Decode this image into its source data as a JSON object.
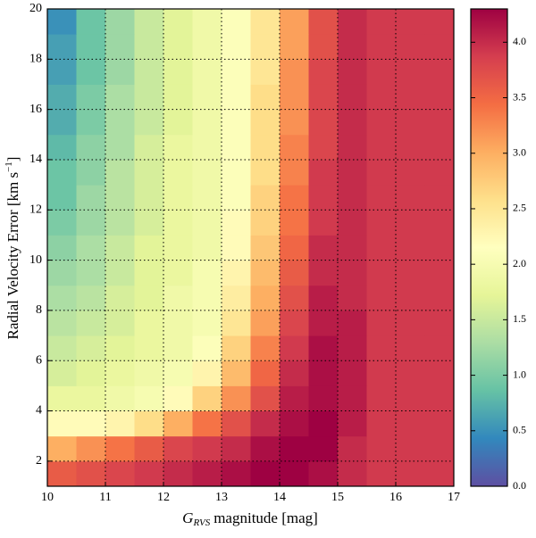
{
  "chart_data": {
    "type": "heatmap",
    "xlabel": "G",
    "xlabel_sub": "RVS",
    "xlabel_rest": "magnitude [mag]",
    "ylabel": "Radial Velocity Error [km s",
    "ylabel_sup": "−1",
    "ylabel_end": "]",
    "xlim": [
      10,
      17
    ],
    "xticks": [
      10,
      11,
      12,
      13,
      14,
      15,
      16,
      17
    ],
    "ylim": [
      1,
      20
    ],
    "yticks": [
      2,
      4,
      6,
      8,
      10,
      12,
      14,
      16,
      18,
      20
    ],
    "grid": true,
    "xbins": [
      10,
      10.5,
      11,
      11.5,
      12,
      12.5,
      13,
      13.5,
      14,
      14.5,
      15,
      15.5,
      16,
      16.5,
      17
    ],
    "ybins": [
      1,
      2,
      3,
      4,
      5,
      6,
      7,
      8,
      9,
      10,
      11,
      12,
      13,
      14,
      15,
      16,
      17,
      18,
      19,
      20
    ],
    "z": [
      [
        3.6,
        3.7,
        3.8,
        3.9,
        4.0,
        4.1,
        4.2,
        4.3,
        4.3,
        4.2,
        4.0,
        3.9,
        3.9,
        3.9
      ],
      [
        3.0,
        3.2,
        3.4,
        3.6,
        3.8,
        3.9,
        4.0,
        4.2,
        4.3,
        4.3,
        4.0,
        3.9,
        3.9,
        3.9
      ],
      [
        2.2,
        2.2,
        2.3,
        2.6,
        3.0,
        3.4,
        3.7,
        4.0,
        4.2,
        4.3,
        4.1,
        3.9,
        3.9,
        3.9
      ],
      [
        1.8,
        1.8,
        1.9,
        2.0,
        2.2,
        2.7,
        3.2,
        3.7,
        4.1,
        4.2,
        4.1,
        3.9,
        3.9,
        3.9
      ],
      [
        1.6,
        1.7,
        1.8,
        1.9,
        2.0,
        2.3,
        2.9,
        3.5,
        4.0,
        4.2,
        4.1,
        3.9,
        3.9,
        3.9
      ],
      [
        1.5,
        1.6,
        1.7,
        1.8,
        1.9,
        2.1,
        2.7,
        3.3,
        3.9,
        4.2,
        4.1,
        3.9,
        3.9,
        3.9
      ],
      [
        1.4,
        1.5,
        1.6,
        1.8,
        1.9,
        2.0,
        2.5,
        3.1,
        3.8,
        4.1,
        4.1,
        3.9,
        3.9,
        3.9
      ],
      [
        1.3,
        1.4,
        1.6,
        1.7,
        1.9,
        2.0,
        2.4,
        3.0,
        3.7,
        4.1,
        4.0,
        3.9,
        3.9,
        3.9
      ],
      [
        1.2,
        1.3,
        1.5,
        1.7,
        1.8,
        2.0,
        2.3,
        2.9,
        3.6,
        4.0,
        4.0,
        3.9,
        3.9,
        3.9
      ],
      [
        1.1,
        1.3,
        1.5,
        1.7,
        1.8,
        1.9,
        2.2,
        2.8,
        3.5,
        4.0,
        4.0,
        3.9,
        3.9,
        3.9
      ],
      [
        1.0,
        1.2,
        1.4,
        1.6,
        1.8,
        1.9,
        2.2,
        2.7,
        3.4,
        3.9,
        4.0,
        3.9,
        3.9,
        3.9
      ],
      [
        0.9,
        1.2,
        1.4,
        1.6,
        1.8,
        1.9,
        2.1,
        2.7,
        3.4,
        3.9,
        4.0,
        3.9,
        3.9,
        3.9
      ],
      [
        0.9,
        1.1,
        1.4,
        1.6,
        1.8,
        1.9,
        2.1,
        2.6,
        3.3,
        3.9,
        4.0,
        3.9,
        3.9,
        3.9
      ],
      [
        0.8,
        1.1,
        1.3,
        1.6,
        1.8,
        1.9,
        2.1,
        2.6,
        3.3,
        3.8,
        4.0,
        3.9,
        3.9,
        3.9
      ],
      [
        0.7,
        1.0,
        1.3,
        1.5,
        1.7,
        1.9,
        2.1,
        2.6,
        3.2,
        3.8,
        4.0,
        3.9,
        3.9,
        3.9
      ],
      [
        0.7,
        1.0,
        1.3,
        1.5,
        1.7,
        1.9,
        2.1,
        2.6,
        3.2,
        3.8,
        4.0,
        3.9,
        3.9,
        3.9
      ],
      [
        0.6,
        0.9,
        1.2,
        1.5,
        1.7,
        1.9,
        2.1,
        2.5,
        3.2,
        3.8,
        4.0,
        3.9,
        3.9,
        3.9
      ],
      [
        0.6,
        0.9,
        1.2,
        1.5,
        1.7,
        1.9,
        2.1,
        2.5,
        3.1,
        3.7,
        4.0,
        3.9,
        3.9,
        3.9
      ],
      [
        0.5,
        0.9,
        1.2,
        1.5,
        1.7,
        1.9,
        2.1,
        2.5,
        3.1,
        3.7,
        4.0,
        3.9,
        3.9,
        3.9
      ]
    ],
    "clim": [
      0,
      4.3
    ],
    "cticks": [
      {
        "value": 0,
        "label": "0.0"
      },
      {
        "value": 0.5,
        "label": "0.5"
      },
      {
        "value": 1,
        "label": "1.0"
      },
      {
        "value": 1.5,
        "label": "1.5"
      },
      {
        "value": 2,
        "label": "2.0"
      },
      {
        "value": 2.5,
        "label": "2.5"
      },
      {
        "value": 3,
        "label": "3.0"
      },
      {
        "value": 3.5,
        "label": "3.5"
      },
      {
        "value": 4,
        "label": "4.0"
      }
    ],
    "colorscale": [
      "#5e4fa2",
      "#3288bd",
      "#66c2a5",
      "#abdda4",
      "#e6f598",
      "#ffffbf",
      "#fee08b",
      "#fdae61",
      "#f46d43",
      "#d53e4f",
      "#9e0142"
    ]
  }
}
